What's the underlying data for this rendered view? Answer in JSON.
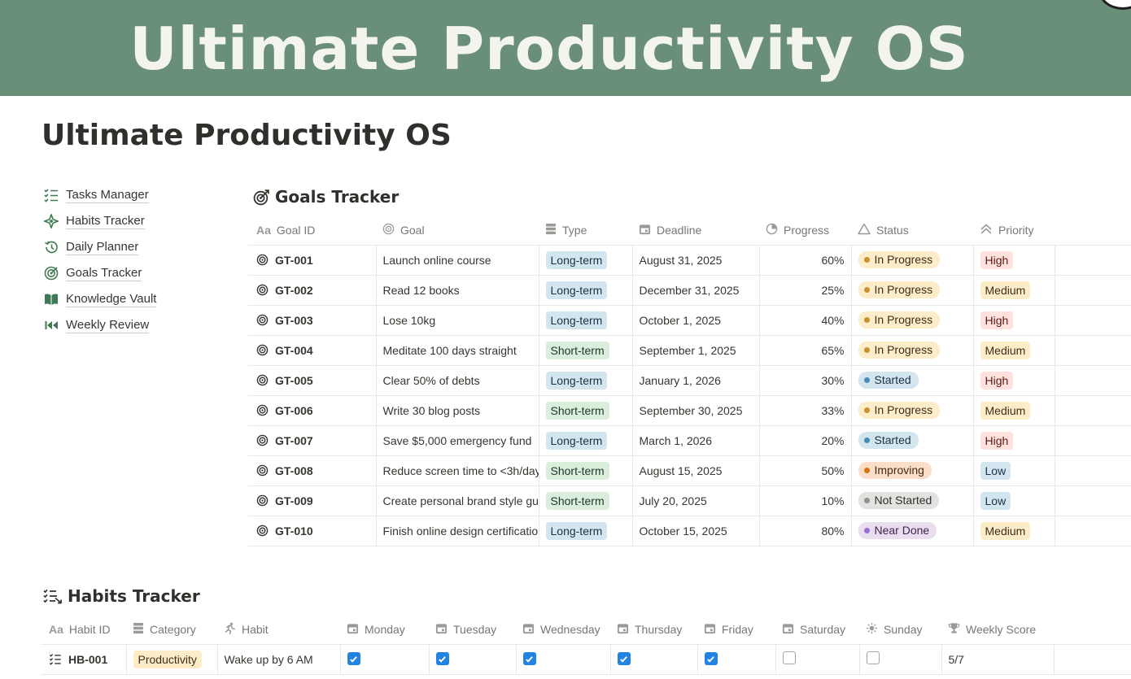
{
  "banner": {
    "title": "Ultimate Productivity OS"
  },
  "page": {
    "title": "Ultimate Productivity OS"
  },
  "sidebar": {
    "items": [
      {
        "label": "Tasks Manager",
        "icon": "checklist-icon"
      },
      {
        "label": "Habits Tracker",
        "icon": "sparkle-star-icon"
      },
      {
        "label": "Daily Planner",
        "icon": "history-clock-icon"
      },
      {
        "label": "Goals Tracker",
        "icon": "target-icon"
      },
      {
        "label": "Knowledge Vault",
        "icon": "open-book-icon"
      },
      {
        "label": "Weekly Review",
        "icon": "rewind-icon"
      }
    ]
  },
  "goals": {
    "title": "Goals Tracker",
    "columns": [
      "Goal ID",
      "Goal",
      "Type",
      "Deadline",
      "Progress",
      "Status",
      "Priority"
    ],
    "rows": [
      {
        "id": "GT-001",
        "goal": "Launch online course",
        "type": "Long-term",
        "deadline": "August 31, 2025",
        "progress": "60%",
        "status": "In Progress",
        "priority": "High"
      },
      {
        "id": "GT-002",
        "goal": "Read 12 books",
        "type": "Long-term",
        "deadline": "December 31, 2025",
        "progress": "25%",
        "status": "In Progress",
        "priority": "Medium"
      },
      {
        "id": "GT-003",
        "goal": "Lose 10kg",
        "type": "Long-term",
        "deadline": "October 1, 2025",
        "progress": "40%",
        "status": "In Progress",
        "priority": "High"
      },
      {
        "id": "GT-004",
        "goal": "Meditate 100 days straight",
        "type": "Short-term",
        "deadline": "September 1, 2025",
        "progress": "65%",
        "status": "In Progress",
        "priority": "Medium"
      },
      {
        "id": "GT-005",
        "goal": "Clear 50% of debts",
        "type": "Long-term",
        "deadline": "January 1, 2026",
        "progress": "30%",
        "status": "Started",
        "priority": "High"
      },
      {
        "id": "GT-006",
        "goal": "Write 30 blog posts",
        "type": "Short-term",
        "deadline": "September 30, 2025",
        "progress": "33%",
        "status": "In Progress",
        "priority": "Medium"
      },
      {
        "id": "GT-007",
        "goal": "Save $5,000 emergency fund",
        "type": "Long-term",
        "deadline": "March 1, 2026",
        "progress": "20%",
        "status": "Started",
        "priority": "High"
      },
      {
        "id": "GT-008",
        "goal": "Reduce screen time to <3h/day",
        "type": "Short-term",
        "deadline": "August 15, 2025",
        "progress": "50%",
        "status": "Improving",
        "priority": "Low"
      },
      {
        "id": "GT-009",
        "goal": "Create personal brand style guide",
        "type": "Short-term",
        "deadline": "July 20, 2025",
        "progress": "10%",
        "status": "Not Started",
        "priority": "Low"
      },
      {
        "id": "GT-010",
        "goal": "Finish online design certification",
        "type": "Long-term",
        "deadline": "October 15, 2025",
        "progress": "80%",
        "status": "Near Done",
        "priority": "Medium"
      }
    ]
  },
  "habits": {
    "title": "Habits Tracker",
    "columns": [
      "Habit ID",
      "Category",
      "Habit",
      "Monday",
      "Tuesday",
      "Wednesday",
      "Thursday",
      "Friday",
      "Saturday",
      "Sunday",
      "Weekly Score"
    ],
    "rows": [
      {
        "id": "HB-001",
        "category": "Productivity",
        "habit": "Wake up by 6 AM",
        "days": [
          true,
          true,
          true,
          true,
          true,
          false,
          false
        ],
        "score": "5/7"
      }
    ]
  },
  "colors": {
    "banner": "#6a8f78",
    "accent_green": "#3f7a55",
    "checkbox": "#2383e2"
  }
}
